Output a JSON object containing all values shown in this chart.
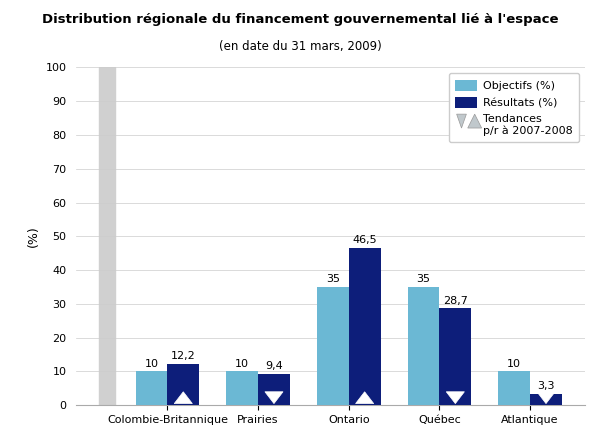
{
  "title": "Distribution régionale du financement gouvernemental lié à l'espace",
  "subtitle": "(en date du 31 mars, 2009)",
  "ylabel": "(%)",
  "categories": [
    "Colombie-Britannique",
    "Prairies",
    "Ontario",
    "Québec",
    "Atlantique"
  ],
  "objectifs": [
    10,
    10,
    35,
    35,
    10
  ],
  "resultats": [
    12.2,
    9.4,
    46.5,
    28.7,
    3.3
  ],
  "objectifs_labels": [
    "10",
    "10",
    "35",
    "35",
    "10"
  ],
  "resultats_labels": [
    "12,2",
    "9,4",
    "46,5",
    "28,7",
    "3,3"
  ],
  "trend_up": [
    true,
    false,
    true,
    false,
    false
  ],
  "color_objectifs": "#6BB8D4",
  "color_resultats": "#0D1E7A",
  "color_trend_fill": "white",
  "ylim": [
    0,
    100
  ],
  "yticks": [
    0,
    10,
    20,
    30,
    40,
    50,
    60,
    70,
    80,
    90,
    100
  ],
  "bar_width": 0.35,
  "background_color": "#ffffff",
  "legend_objectifs": "Objectifs (%)",
  "legend_resultats": "Résultats (%)",
  "legend_tendances": "Tendances\np/r à 2007-2008",
  "gray_strip_color": "#d0d0d0",
  "axis_color": "#aaaaaa",
  "grid_color": "#cccccc"
}
